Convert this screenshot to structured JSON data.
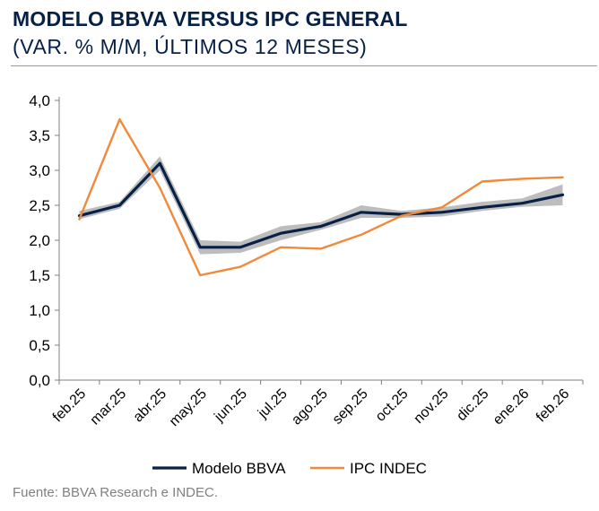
{
  "title": "MODELO BBVA VERSUS IPC GENERAL",
  "subtitle": "(VAR. % M/M, ÚLTIMOS 12 MESES)",
  "source": "Fuente: BBVA Research e INDEC.",
  "colors": {
    "model": "#072146",
    "ipc": "#F08A3A",
    "band": "#BDBDBD",
    "axis": "#808080",
    "text": "#000000"
  },
  "chart_data": {
    "type": "line",
    "categories": [
      "feb.25",
      "mar.25",
      "abr.25",
      "may.25",
      "jun.25",
      "jul.25",
      "ago.25",
      "sep.25",
      "oct.25",
      "nov.25",
      "dic.25",
      "ene.26",
      "feb.26"
    ],
    "yticks": [
      "0,0",
      "0,5",
      "1,0",
      "1,5",
      "2,0",
      "2,5",
      "3,0",
      "3,5",
      "4,0"
    ],
    "ylim": [
      0,
      4
    ],
    "series": [
      {
        "name": "Modelo BBVA",
        "values": [
          2.35,
          2.5,
          3.1,
          1.9,
          1.9,
          2.1,
          2.2,
          2.4,
          2.37,
          2.4,
          2.47,
          2.53,
          2.65
        ]
      },
      {
        "name": "IPC INDEC",
        "values": [
          2.3,
          3.73,
          2.75,
          1.5,
          1.62,
          1.9,
          1.88,
          2.08,
          2.35,
          2.47,
          2.84,
          2.88,
          2.9
        ]
      }
    ],
    "band": {
      "upper": [
        2.42,
        2.55,
        3.2,
        2.0,
        1.98,
        2.2,
        2.26,
        2.5,
        2.42,
        2.47,
        2.55,
        2.6,
        2.8
      ],
      "lower": [
        2.3,
        2.45,
        3.0,
        1.8,
        1.82,
        2.0,
        2.15,
        2.32,
        2.32,
        2.34,
        2.42,
        2.48,
        2.5
      ]
    },
    "legend": [
      "Modelo BBVA",
      "IPC INDEC"
    ],
    "legend_position": "bottom"
  }
}
